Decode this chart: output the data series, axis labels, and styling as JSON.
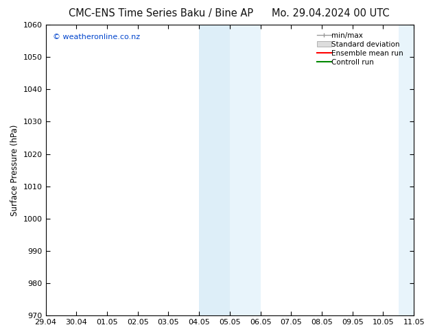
{
  "title_left": "CMC-ENS Time Series Baku / Bine AP",
  "title_right": "Mo. 29.04.2024 00 UTC",
  "ylabel": "Surface Pressure (hPa)",
  "ylim": [
    970,
    1060
  ],
  "yticks": [
    970,
    980,
    990,
    1000,
    1010,
    1020,
    1030,
    1040,
    1050,
    1060
  ],
  "xlim_start": 0,
  "xlim_end": 12,
  "xtick_positions": [
    0,
    1,
    2,
    3,
    4,
    5,
    6,
    7,
    8,
    9,
    10,
    11,
    12
  ],
  "xtick_labels": [
    "29.04",
    "30.04",
    "01.05",
    "02.05",
    "03.05",
    "04.05",
    "05.05",
    "06.05",
    "07.05",
    "08.05",
    "09.05",
    "10.05",
    "11.05"
  ],
  "shade1_start": 5,
  "shade1_end": 6,
  "shade1_color": "#ddeef8",
  "shade2_start": 6,
  "shade2_end": 7,
  "shade2_color": "#e8f4fb",
  "shade3_start": 11.5,
  "shade3_end": 12,
  "shade3_color": "#e8f4fb",
  "watermark_text": "© weatheronline.co.nz",
  "watermark_color": "#0044cc",
  "bg_color": "#ffffff",
  "legend_entries": [
    "min/max",
    "Standard deviation",
    "Ensemble mean run",
    "Controll run"
  ],
  "legend_colors_line": [
    "#999999",
    "#bbbbbb",
    "#ff0000",
    "#008800"
  ],
  "legend_colors_patch": [
    "#bbbbbb",
    "#dddddd",
    "#ff0000",
    "#008800"
  ],
  "title_fontsize": 10.5,
  "axis_label_fontsize": 8.5,
  "tick_fontsize": 8,
  "legend_fontsize": 7.5,
  "spine_color": "#000000"
}
